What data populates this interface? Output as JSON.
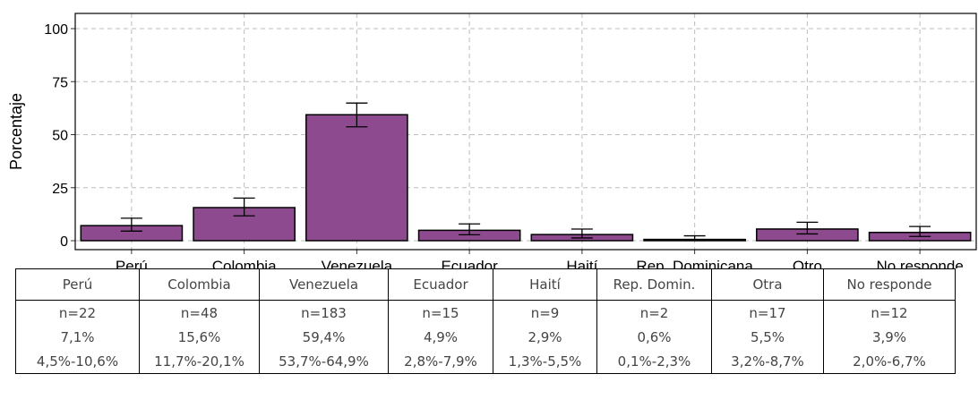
{
  "chart_data": {
    "type": "bar",
    "ylabel": "Porcentaje",
    "ylim": [
      0,
      100
    ],
    "yticks": [
      "0",
      "25",
      "50",
      "75",
      "100"
    ],
    "grid": true,
    "categories": [
      "Perú",
      "Colombia",
      "Venezuela",
      "Ecuador",
      "Haití",
      "Rep. Dominicana",
      "Otro",
      "No responde"
    ],
    "values": [
      7.1,
      15.6,
      59.4,
      4.9,
      2.9,
      0.6,
      5.5,
      3.9
    ],
    "ci_low": [
      4.5,
      11.7,
      53.7,
      2.8,
      1.3,
      0.1,
      3.2,
      2.0
    ],
    "ci_high": [
      10.6,
      20.1,
      64.9,
      7.9,
      5.5,
      2.3,
      8.7,
      6.7
    ],
    "bar_color": "#8E4A8E"
  },
  "table": {
    "headers": [
      "Perú",
      "Colombia",
      "Venezuela",
      "Ecuador",
      "Haití",
      "Rep. Domin.",
      "Otra",
      "No responde"
    ],
    "n": [
      "n=22",
      "n=48",
      "n=183",
      "n=15",
      "n=9",
      "n=2",
      "n=17",
      "n=12"
    ],
    "pct": [
      "7,1%",
      "15,6%",
      "59,4%",
      "4,9%",
      "2,9%",
      "0,6%",
      "5,5%",
      "3,9%"
    ],
    "ci": [
      "4,5%-10,6%",
      "11,7%-20,1%",
      "53,7%-64,9%",
      "2,8%-7,9%",
      "1,3%-5,5%",
      "0,1%-2,3%",
      "3,2%-8,7%",
      "2,0%-6,7%"
    ]
  }
}
